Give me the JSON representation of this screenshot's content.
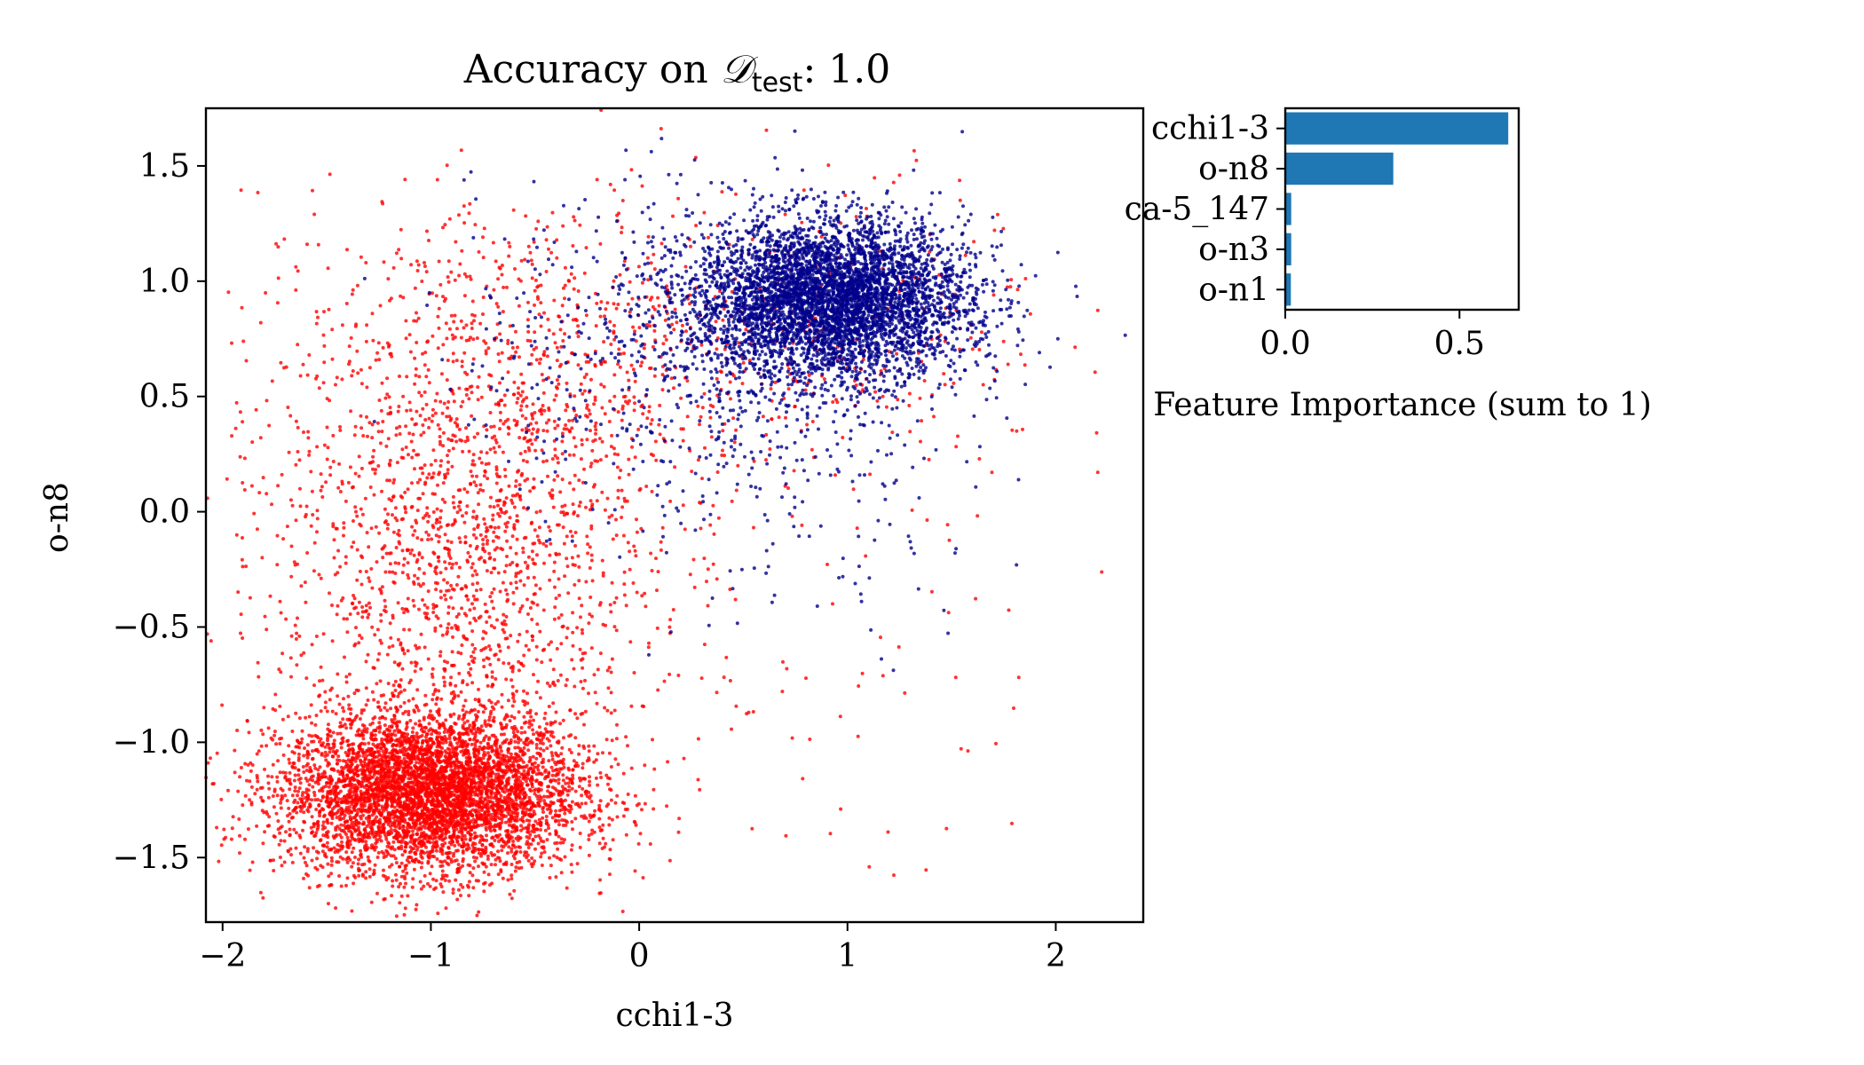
{
  "chart_data": [
    {
      "type": "scatter",
      "title": "Accuracy on 𝒟test: 1.0",
      "title_parts": {
        "prefix": "Accuracy on ",
        "symbol": "𝒟",
        "subscript": "test",
        "suffix": ": 1.0"
      },
      "xlabel": "cchi1-3",
      "ylabel": "o-n8",
      "xlim": [
        -2.08,
        2.42
      ],
      "ylim": [
        -1.78,
        1.75
      ],
      "xticks": [
        -2,
        -1,
        0,
        1,
        2
      ],
      "xtick_labels": [
        "−2",
        "−1",
        "0",
        "1",
        "2"
      ],
      "yticks": [
        -1.5,
        -1.0,
        -0.5,
        0.0,
        0.5,
        1.0,
        1.5
      ],
      "ytick_labels": [
        "−1.5",
        "−1.0",
        "−0.5",
        "0.0",
        "0.5",
        "1.0",
        "1.5"
      ],
      "grid": false,
      "series": [
        {
          "color": "#ff0000",
          "clusters": [
            {
              "center": [
                -1.0,
                -1.22
              ],
              "spread": [
                0.36,
                0.17
              ],
              "count": 5200
            },
            {
              "center": [
                -0.85,
                -0.2
              ],
              "spread": [
                0.45,
                0.5
              ],
              "count": 1600
            },
            {
              "center": [
                -0.5,
                0.7
              ],
              "spread": [
                0.7,
                0.35
              ],
              "count": 700
            },
            {
              "center": [
                1.0,
                0.85
              ],
              "spread": [
                0.5,
                0.3
              ],
              "count": 200
            },
            {
              "center": [
                0.3,
                -0.2
              ],
              "spread": [
                0.9,
                0.9
              ],
              "count": 200
            }
          ]
        },
        {
          "color": "#00008b",
          "clusters": [
            {
              "center": [
                0.92,
                0.92
              ],
              "spread": [
                0.33,
                0.17
              ],
              "count": 4800
            },
            {
              "center": [
                0.3,
                0.7
              ],
              "spread": [
                0.55,
                0.35
              ],
              "count": 600
            },
            {
              "center": [
                0.8,
                0.0
              ],
              "spread": [
                0.45,
                0.35
              ],
              "count": 120
            }
          ]
        }
      ]
    },
    {
      "type": "bar",
      "orientation": "horizontal",
      "categories": [
        "cchi1-3",
        "o-n8",
        "ca-5_147",
        "o-n3",
        "o-n1"
      ],
      "values": [
        0.64,
        0.31,
        0.017,
        0.017,
        0.016
      ],
      "color": "#1f77b4",
      "xlabel": "Feature Importance (sum to 1)",
      "xlim": [
        0,
        0.67
      ],
      "xticks": [
        0.0,
        0.5
      ],
      "xtick_labels": [
        "0.0",
        "0.5"
      ],
      "grid": false
    }
  ]
}
